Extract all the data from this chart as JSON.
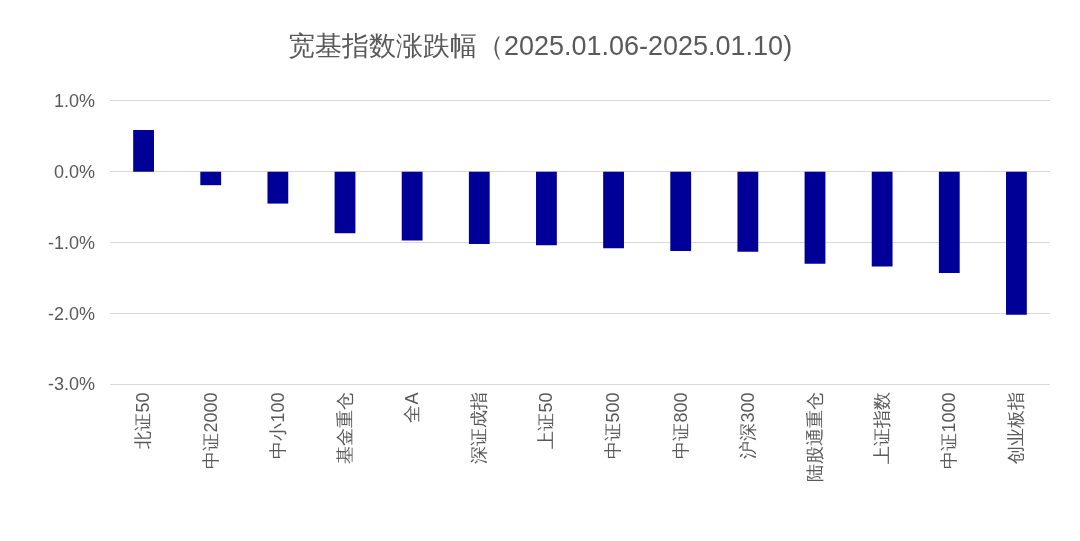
{
  "chart_data": {
    "type": "bar",
    "title": "宽基指数涨跌幅（2025.01.06-2025.01.10)",
    "categories": [
      "北证50",
      "中证2000",
      "中小100",
      "基金重仓",
      "全A",
      "深证成指",
      "上证50",
      "中证500",
      "中证800",
      "沪深300",
      "陆股通重仓",
      "上证指数",
      "中证1000",
      "创业板指"
    ],
    "values": [
      0.59,
      -0.19,
      -0.45,
      -0.87,
      -0.97,
      -1.02,
      -1.04,
      -1.08,
      -1.12,
      -1.13,
      -1.3,
      -1.34,
      -1.43,
      -2.02
    ],
    "color": "#000099",
    "ylim": [
      -3,
      1
    ],
    "yticks": [
      {
        "value": -3,
        "label": "-3.0%"
      },
      {
        "value": -2,
        "label": "-2.0%"
      },
      {
        "value": -1,
        "label": "-1.0%"
      },
      {
        "value": 0,
        "label": "0.0%"
      },
      {
        "value": 1,
        "label": "1.0%"
      }
    ],
    "grid": "y"
  }
}
